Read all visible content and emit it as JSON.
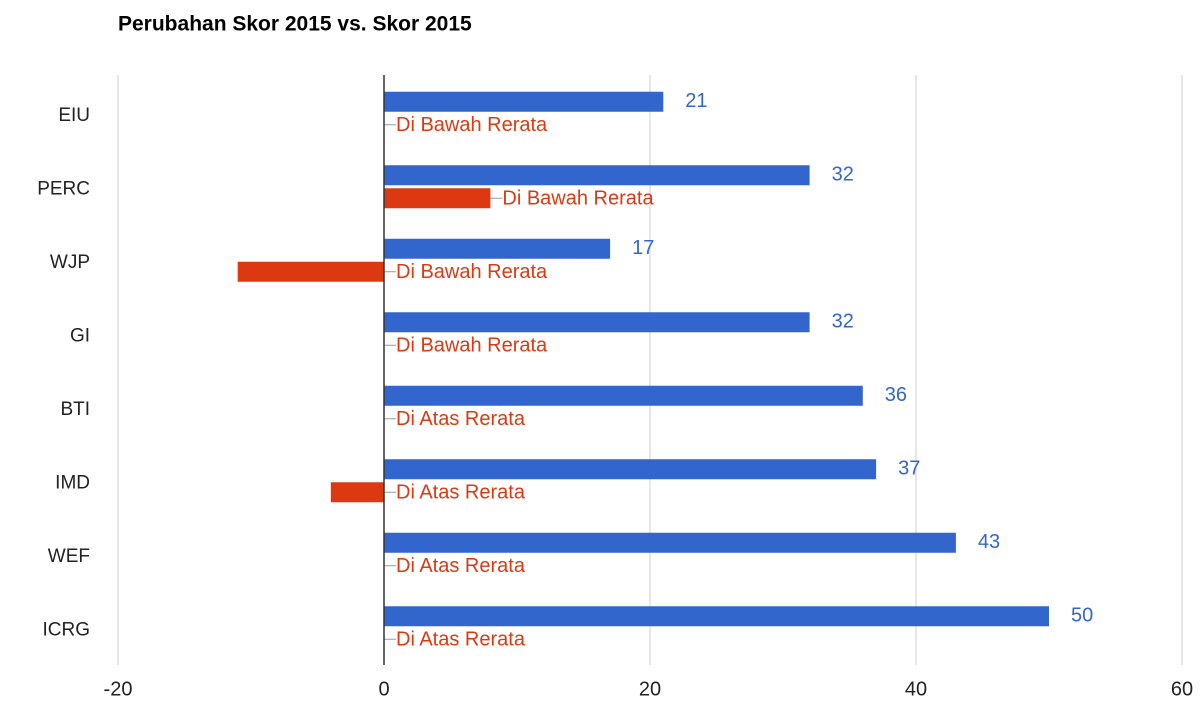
{
  "chart_data": {
    "type": "hbar",
    "title": "Perubahan Skor 2015 vs. Skor 2015",
    "categories": [
      "EIU",
      "PERC",
      "WJP",
      "GI",
      "BTI",
      "IMD",
      "WEF",
      "ICRG"
    ],
    "series": [
      {
        "color": "#3366cc",
        "values": [
          21,
          32,
          17,
          32,
          36,
          37,
          43,
          50
        ]
      },
      {
        "color": "#dc3912",
        "values": [
          0,
          8,
          -11,
          0,
          0,
          -4,
          0,
          0
        ],
        "annotations": [
          "Di Bawah Rerata",
          "Di Bawah Rerata",
          "Di Bawah Rerata",
          "Di Bawah Rerata",
          "Di Atas Rerata",
          "Di Atas Rerata",
          "Di Atas Rerata",
          "Di Atas Rerata"
        ]
      }
    ],
    "xlim": [
      -20,
      60
    ],
    "xticks": [
      -20,
      0,
      20,
      40,
      60
    ],
    "grid": true
  }
}
